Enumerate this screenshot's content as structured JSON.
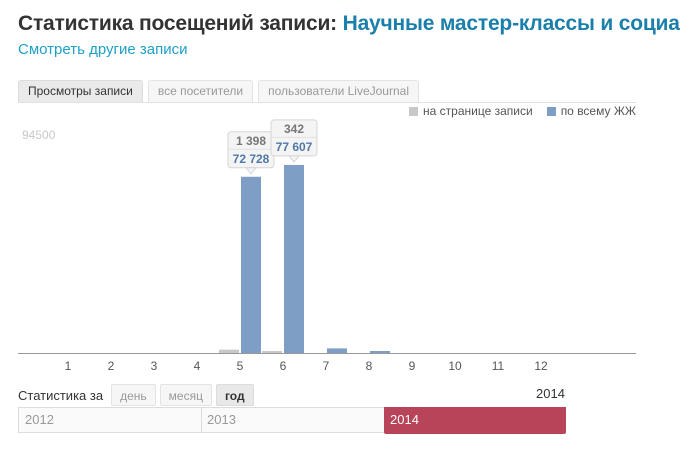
{
  "header": {
    "title_prefix": "Статистика посещений записи:",
    "title_subject": "Научные мастер-классы и социа",
    "other_link": "Смотреть другие записи"
  },
  "tabs": [
    {
      "label": "Просмотры записи",
      "active": true
    },
    {
      "label": "все посетители",
      "active": false
    },
    {
      "label": "пользователи LiveJournal",
      "active": false
    }
  ],
  "legend": [
    {
      "label": "на странице записи",
      "color": "#c8c8c8"
    },
    {
      "label": "по всему ЖЖ",
      "color": "#7f9ec5"
    }
  ],
  "chart_data": {
    "type": "bar",
    "categories": [
      "1",
      "2",
      "3",
      "4",
      "5",
      "6",
      "7",
      "8",
      "9",
      "10",
      "11",
      "12"
    ],
    "series": [
      {
        "name": "на странице записи",
        "values": [
          0,
          0,
          0,
          0,
          1398,
          342,
          0,
          0,
          0,
          0,
          0,
          0
        ]
      },
      {
        "name": "по всему ЖЖ",
        "values": [
          0,
          0,
          0,
          0,
          72728,
          77607,
          1900,
          650,
          0,
          0,
          0,
          0
        ]
      }
    ],
    "ymax_label": "94500",
    "ylim": [
      0,
      94500
    ],
    "callouts": [
      {
        "category": "5",
        "top": "1 398",
        "bottom": "72 728"
      },
      {
        "category": "6",
        "top": "342",
        "bottom": "77 607"
      }
    ],
    "colors": {
      "page": "#c8c8c8",
      "all": "#7f9ec5"
    }
  },
  "period": {
    "label": "Статистика за",
    "options": [
      {
        "label": "день",
        "active": false
      },
      {
        "label": "месяц",
        "active": false
      },
      {
        "label": "год",
        "active": true
      }
    ],
    "current_year": "2014"
  },
  "timeline": {
    "years": [
      "2012",
      "2013",
      "2014"
    ],
    "active": "2014",
    "active_color": "#b8445a"
  }
}
